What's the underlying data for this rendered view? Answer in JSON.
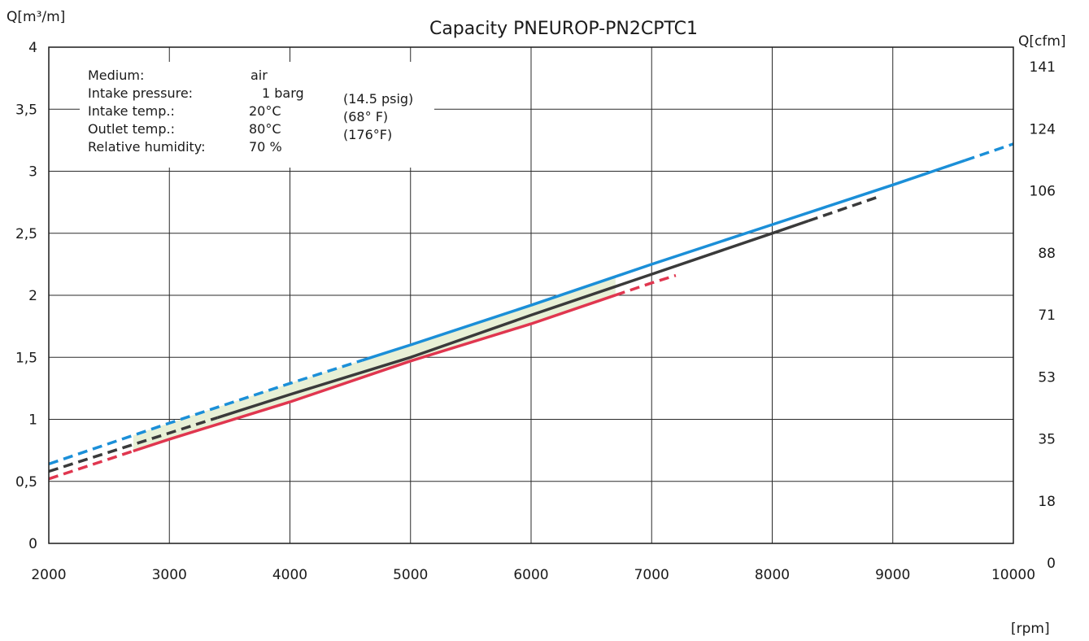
{
  "chart_data": {
    "type": "line",
    "title": "Capacity PNEUROP-PN2CPTC1",
    "xlabel": "[rpm]",
    "ylabel": "Q[m³/m]",
    "y2label": "Q[cfm]",
    "xlim": [
      2000,
      10000
    ],
    "ylim": [
      0,
      4
    ],
    "grid": true,
    "x_ticks": [
      "2000",
      "3000",
      "4000",
      "5000",
      "6000",
      "7000",
      "8000",
      "9000",
      "10000"
    ],
    "y_ticks": [
      "0",
      "0,5",
      "1",
      "1,5",
      "2",
      "2,5",
      "3",
      "3,5",
      "4"
    ],
    "y2_ticks": [
      "0",
      "18",
      "35",
      "53",
      "71",
      "88",
      "106",
      "124",
      "141"
    ],
    "info_box": {
      "labels": [
        "Medium:",
        "Intake pressure:",
        "Intake temp.:",
        "Outlet temp.:",
        "Relative humidity:"
      ],
      "values": [
        "air",
        "1 barg",
        "20°C",
        "80°C",
        "70 %"
      ],
      "imperial": [
        "",
        "(14.5 psig)",
        "(68° F)",
        "(176°F)",
        ""
      ]
    },
    "band_fill": "#e8f0d6",
    "series": [
      {
        "color": "#1b8fd8",
        "x": [
          2000,
          3000,
          4000,
          5000,
          6000,
          7000,
          8000,
          9000,
          10000
        ],
        "values": [
          0.64,
          0.97,
          1.29,
          1.6,
          1.92,
          2.25,
          2.57,
          2.89,
          3.22
        ],
        "solid_range": [
          4600,
          9600
        ]
      },
      {
        "color": "#3a3a3a",
        "x": [
          2000,
          3000,
          4000,
          5000,
          6000,
          7000,
          8000,
          8900
        ],
        "values": [
          0.58,
          0.89,
          1.2,
          1.5,
          1.84,
          2.17,
          2.5,
          2.8
        ],
        "solid_range": [
          3400,
          8300
        ]
      },
      {
        "color": "#e0364f",
        "x": [
          2000,
          3000,
          4000,
          5000,
          6000,
          7000,
          7200
        ],
        "values": [
          0.52,
          0.84,
          1.14,
          1.47,
          1.77,
          2.1,
          2.16
        ],
        "solid_range": [
          2700,
          6700
        ]
      }
    ]
  }
}
